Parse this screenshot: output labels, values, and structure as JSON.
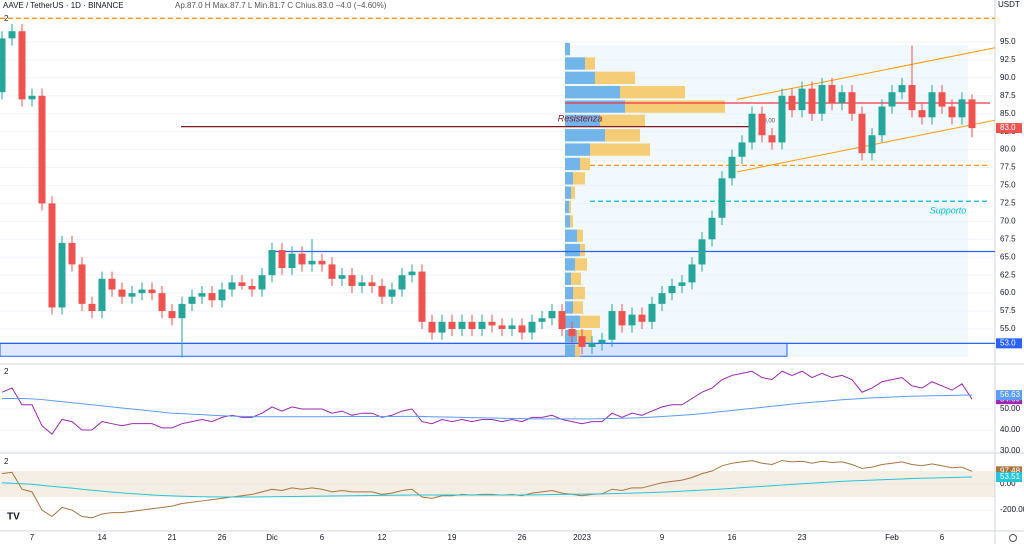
{
  "header": {
    "pane_label": "2"
  },
  "chart_data": [
    {
      "type": "candlestick",
      "title": "AAVE / TetherUS · 1D · BINANCE",
      "subtitle": "Ap.87.0 H Max.87.7 L Min.81.7 C Chius.83.0 −4.0 (−4.60%)",
      "currency": "USDT",
      "categories": [
        null,
        null,
        null,
        "7",
        null,
        null,
        null,
        null,
        null,
        null,
        "14",
        null,
        null,
        null,
        null,
        null,
        null,
        "21",
        null,
        null,
        null,
        null,
        "26",
        null,
        null,
        null,
        null,
        "Dic",
        null,
        null,
        null,
        null,
        "6",
        null,
        null,
        null,
        null,
        null,
        "12",
        null,
        null,
        null,
        null,
        null,
        null,
        "19",
        null,
        null,
        null,
        null,
        null,
        null,
        "26",
        null,
        null,
        null,
        null,
        null,
        "2023",
        null,
        null,
        null,
        null,
        null,
        null,
        null,
        "9",
        null,
        null,
        null,
        null,
        null,
        null,
        "16",
        null,
        null,
        null,
        null,
        null,
        null,
        "23",
        null,
        null,
        null,
        null,
        null,
        null,
        null,
        null,
        "Feb",
        null,
        null,
        null,
        null,
        "6",
        null,
        null,
        null
      ],
      "open": [
        88,
        95.5,
        96.5,
        87,
        87.5,
        72.5,
        58,
        67,
        64,
        58.5,
        57.5,
        62,
        60.5,
        59.5,
        60,
        60.5,
        60,
        57.5,
        56.5,
        58.5,
        59.5,
        60,
        59,
        60.5,
        61.5,
        61,
        60.5,
        62.5,
        66,
        63.5,
        65.5,
        64,
        64.5,
        64,
        62,
        62.5,
        61,
        61.5,
        61,
        59.5,
        60.5,
        62.5,
        63,
        56,
        54.5,
        56,
        55,
        56,
        55,
        56,
        55.5,
        55,
        55.5,
        54.5,
        56,
        56.5,
        57.5,
        55,
        54,
        52.5,
        53,
        53.5,
        57.5,
        55.5,
        57,
        56,
        58.5,
        60,
        61,
        61.5,
        64,
        67.5,
        70.5,
        76,
        79,
        81,
        85,
        82,
        81,
        87.5,
        85.5,
        88.5,
        85,
        89,
        86.5,
        88,
        85,
        79.5,
        82,
        86,
        88,
        89,
        85.5,
        84.5,
        88,
        86,
        84.5,
        87
      ],
      "high": [
        96.5,
        97.5,
        97.5,
        88.5,
        88.5,
        73.5,
        68,
        68,
        65,
        59.5,
        63,
        63,
        61.5,
        61,
        61.5,
        61.5,
        61,
        58.5,
        59.5,
        60.5,
        61,
        61,
        61.5,
        62.5,
        62.5,
        62,
        63.5,
        67,
        67,
        66.5,
        66.5,
        67.5,
        65.5,
        65,
        63.5,
        63.5,
        62.5,
        62.5,
        62,
        61.5,
        63.5,
        64,
        64,
        57,
        57,
        57,
        57,
        57,
        57,
        57,
        56.5,
        56.5,
        56.5,
        57,
        57.5,
        58.5,
        58.5,
        56,
        55,
        54,
        54.5,
        58.5,
        58.5,
        58,
        58,
        59.5,
        61,
        62,
        62.5,
        65,
        68.5,
        71.5,
        77,
        80,
        82,
        86,
        86,
        83,
        88.5,
        88.5,
        89.5,
        89.5,
        90,
        90,
        89,
        89,
        86,
        83,
        87,
        89,
        90,
        94.5,
        86.5,
        89,
        89,
        87,
        88,
        87.7
      ],
      "low": [
        87,
        94.5,
        86,
        86,
        71.5,
        57,
        57,
        63,
        57.5,
        56.5,
        56.5,
        59.5,
        58.5,
        58.5,
        59,
        59,
        56.5,
        55.5,
        51,
        57.5,
        58.5,
        58,
        58,
        59.5,
        60.5,
        59.5,
        59.5,
        61.5,
        62.5,
        62.5,
        63,
        63,
        63,
        61,
        61,
        60,
        60,
        60,
        58.5,
        58.5,
        59.5,
        61.5,
        55,
        53.5,
        53.5,
        54,
        54,
        54,
        54,
        54.5,
        54,
        54,
        53.5,
        53.5,
        55,
        55.5,
        54,
        53,
        51.5,
        51.5,
        52,
        52.5,
        54.5,
        54.5,
        55,
        55,
        57.5,
        59,
        60,
        60.5,
        63,
        66.5,
        69.5,
        75,
        78,
        80,
        81,
        80,
        80,
        84.5,
        84.5,
        84,
        84,
        85.5,
        85.5,
        84,
        78.5,
        78.5,
        81,
        85,
        87,
        84.5,
        83.5,
        83.5,
        85,
        83.5,
        83.5,
        81.7
      ],
      "close": [
        95.5,
        96.5,
        87,
        87.5,
        72.5,
        58,
        67,
        64,
        58.5,
        57.5,
        62,
        60.5,
        59.5,
        60,
        60.5,
        60,
        57.5,
        56.5,
        58.5,
        59.5,
        60,
        59,
        60.5,
        61.5,
        61,
        60.5,
        62.5,
        66,
        63.5,
        65.5,
        64,
        64.5,
        64,
        62,
        62.5,
        61,
        61.5,
        61,
        59.5,
        60.5,
        62.5,
        63,
        56,
        54.5,
        56,
        55,
        56,
        55,
        56,
        55.5,
        55,
        55.5,
        54.5,
        56,
        56.5,
        57.5,
        55,
        54,
        52.5,
        53,
        53.5,
        57.5,
        55.5,
        57,
        56,
        58.5,
        60,
        61,
        61.5,
        64,
        67.5,
        70.5,
        76,
        79,
        81,
        85,
        82,
        81,
        87.5,
        85.5,
        88.5,
        85,
        89,
        86.5,
        88,
        85,
        79.5,
        82,
        86,
        88,
        89,
        85.5,
        84.5,
        88,
        86,
        84.5,
        87,
        83
      ],
      "up_color": "#26a69a",
      "down_color": "#ef5350",
      "ylim": [
        50.4,
        100.85
      ],
      "yticks": [
        {
          "value": 55,
          "label": "55.0"
        },
        {
          "value": 57.5,
          "label": "57.5"
        },
        {
          "value": 60,
          "label": "60.0"
        },
        {
          "value": 62.5,
          "label": "62.5"
        },
        {
          "value": 65,
          "label": "65.0"
        },
        {
          "value": 67.5,
          "label": "67.5"
        },
        {
          "value": 70,
          "label": "70.0"
        },
        {
          "value": 72.5,
          "label": "72.5"
        },
        {
          "value": 75,
          "label": "75.0"
        },
        {
          "value": 77.5,
          "label": "77.5"
        },
        {
          "value": 80,
          "label": "80.0"
        },
        {
          "value": 82.5,
          "label": "82.5"
        },
        {
          "value": 85,
          "label": "85.0"
        },
        {
          "value": 87.5,
          "label": "87.5"
        },
        {
          "value": 90,
          "label": "90.0"
        },
        {
          "value": 92.5,
          "label": "92.5"
        },
        {
          "value": 95,
          "label": "95.0"
        }
      ],
      "price_labels": [
        {
          "value": 83,
          "label": "83.0",
          "color": "#ef5350"
        },
        {
          "value": 53,
          "label": "53.0",
          "color": "#2962ff"
        }
      ],
      "levels": [
        {
          "value": 98.3,
          "color": "#ff9800",
          "dash": true
        },
        {
          "value": 77.8,
          "color": "#ff9800",
          "dash": true
        },
        {
          "value": 72.8,
          "color": "#00bcd4",
          "dash": true,
          "label": "Supporto"
        },
        {
          "value": 65.8,
          "color": "#2962ff"
        },
        {
          "value": 53,
          "color": "#2962ff"
        },
        {
          "value": 83.2,
          "color": "#801922",
          "label": "Resistenza"
        },
        {
          "value": 86.5,
          "color": "#f23645"
        }
      ],
      "channel": {
        "color": "#ff9800",
        "lines": [
          {
            "start": 76.9,
            "end": 84.1
          },
          {
            "start": 87,
            "end": 94.2
          }
        ]
      },
      "zone": {
        "from": 51.2,
        "to": 53,
        "color": "#2962ff"
      },
      "annotations": [
        "50,00"
      ],
      "volume_profile": {
        "bins": [
          51,
          53,
          55,
          57,
          59,
          61,
          63,
          65,
          67,
          69,
          71,
          73,
          75,
          77,
          79,
          81,
          83,
          85,
          87,
          89,
          91,
          93,
          95
        ],
        "series": [
          {
            "color": "#5aa9e6",
            "values": [
              10,
              12,
              15,
              8,
              8,
              6,
              10,
              15,
              12,
              5,
              4,
              6,
              8,
              15,
              25,
              40,
              35,
              60,
              55,
              30,
              20,
              5
            ]
          },
          {
            "color": "#f7c55f",
            "values": [
              5,
              15,
              20,
              10,
              12,
              10,
              12,
              5,
              6,
              3,
              2,
              4,
              12,
              10,
              60,
              35,
              45,
              100,
              65,
              40,
              10,
              0
            ]
          }
        ]
      }
    },
    {
      "type": "line",
      "ylim": [
        29.5,
        70.5
      ],
      "yticks": [
        {
          "value": 30,
          "label": "30.00"
        },
        {
          "value": 40,
          "label": "40.00"
        },
        {
          "value": 50,
          "label": "50.00"
        }
      ],
      "series": [
        {
          "color": "#9c27b0",
          "values": [
            58,
            60,
            52,
            52,
            42,
            38,
            45,
            44,
            40,
            40,
            44,
            43,
            42,
            43,
            43,
            43,
            41,
            41,
            43,
            44,
            45,
            44,
            46,
            47,
            46,
            46,
            48,
            51,
            49,
            51,
            50,
            50,
            50,
            48,
            49,
            47,
            48,
            48,
            46,
            47,
            49,
            50,
            44,
            43,
            45,
            44,
            45,
            44,
            45,
            45,
            44,
            45,
            44,
            46,
            46,
            47,
            45,
            44,
            43,
            44,
            44,
            48,
            46,
            48,
            47,
            49,
            51,
            52,
            52,
            55,
            58,
            60,
            64,
            66,
            67,
            68,
            65,
            64,
            68,
            66,
            68,
            65,
            67,
            65,
            66,
            64,
            58,
            60,
            63,
            64,
            65,
            61,
            60,
            63,
            61,
            59,
            62,
            54.69
          ]
        },
        {
          "color": "#5b9cf6",
          "values": [
            55,
            55,
            55,
            54.8,
            54.5,
            54,
            53.5,
            53,
            52.5,
            52,
            51.5,
            51,
            50.5,
            50,
            49.5,
            49,
            48.5,
            48,
            47.8,
            47.5,
            47.3,
            47,
            46.8,
            46.6,
            46.5,
            46.4,
            46.3,
            46.3,
            46.3,
            46.3,
            46.3,
            46.3,
            46.3,
            46.3,
            46.4,
            46.4,
            46.4,
            46.4,
            46.4,
            46.4,
            46.5,
            46.5,
            46.4,
            46.3,
            46.2,
            46.1,
            46,
            45.9,
            45.8,
            45.7,
            45.6,
            45.5,
            45.4,
            45.3,
            45.3,
            45.3,
            45.3,
            45.3,
            45.3,
            45.3,
            45.4,
            45.5,
            45.6,
            45.7,
            45.9,
            46.1,
            46.4,
            46.7,
            47,
            47.4,
            47.8,
            48.3,
            48.8,
            49.3,
            49.8,
            50.3,
            50.8,
            51.3,
            51.8,
            52.3,
            52.8,
            53.2,
            53.6,
            54,
            54.4,
            54.7,
            55,
            55.3,
            55.5,
            55.7,
            55.9,
            56.1,
            56.2,
            56.3,
            56.4,
            56.5,
            56.6,
            56.63
          ]
        }
      ]
    },
    {
      "type": "line",
      "ylim": [
        -361,
        223
      ],
      "band": [
        -100,
        100
      ],
      "yticks": [
        {
          "value": 0,
          "label": "0.00"
        },
        {
          "value": -200,
          "label": "-200.00"
        }
      ],
      "series": [
        {
          "color": "#a8763e",
          "values": [
            80,
            90,
            -40,
            -60,
            -200,
            -250,
            -180,
            -200,
            -250,
            -260,
            -230,
            -220,
            -220,
            -210,
            -200,
            -190,
            -180,
            -170,
            -150,
            -140,
            -130,
            -120,
            -110,
            -100,
            -90,
            -80,
            -60,
            -40,
            -50,
            -30,
            -40,
            -30,
            -40,
            -60,
            -50,
            -60,
            -60,
            -60,
            -80,
            -70,
            -50,
            -40,
            -100,
            -110,
            -90,
            -90,
            -80,
            -85,
            -80,
            -80,
            -85,
            -80,
            -90,
            -70,
            -60,
            -50,
            -70,
            -80,
            -90,
            -80,
            -75,
            -40,
            -50,
            -30,
            -30,
            -10,
            10,
            20,
            30,
            50,
            80,
            100,
            140,
            160,
            170,
            180,
            160,
            150,
            180,
            170,
            175,
            160,
            175,
            165,
            170,
            150,
            120,
            130,
            150,
            160,
            170,
            150,
            140,
            155,
            140,
            125,
            130,
            97.48
          ]
        },
        {
          "color": "#26c6da",
          "values": [
            10,
            6,
            2,
            -2,
            -10,
            -18,
            -25,
            -32,
            -40,
            -48,
            -55,
            -62,
            -68,
            -74,
            -79,
            -84,
            -88,
            -91,
            -94,
            -96,
            -98,
            -99,
            -100,
            -100,
            -100,
            -100,
            -99,
            -98,
            -97,
            -96,
            -95,
            -94,
            -93,
            -92,
            -91,
            -90,
            -89,
            -88,
            -87,
            -86,
            -85,
            -84,
            -84,
            -84,
            -84,
            -84,
            -84,
            -84,
            -84,
            -84,
            -84,
            -84,
            -84,
            -83,
            -82,
            -81,
            -80,
            -79,
            -78,
            -77,
            -76,
            -74,
            -72,
            -70,
            -68,
            -65,
            -62,
            -59,
            -55,
            -51,
            -47,
            -43,
            -38,
            -33,
            -28,
            -23,
            -18,
            -13,
            -8,
            -3,
            2,
            7,
            12,
            16,
            20,
            24,
            27,
            30,
            33,
            36,
            39,
            42,
            44,
            46,
            48,
            50,
            52,
            53.51
          ]
        }
      ]
    }
  ]
}
